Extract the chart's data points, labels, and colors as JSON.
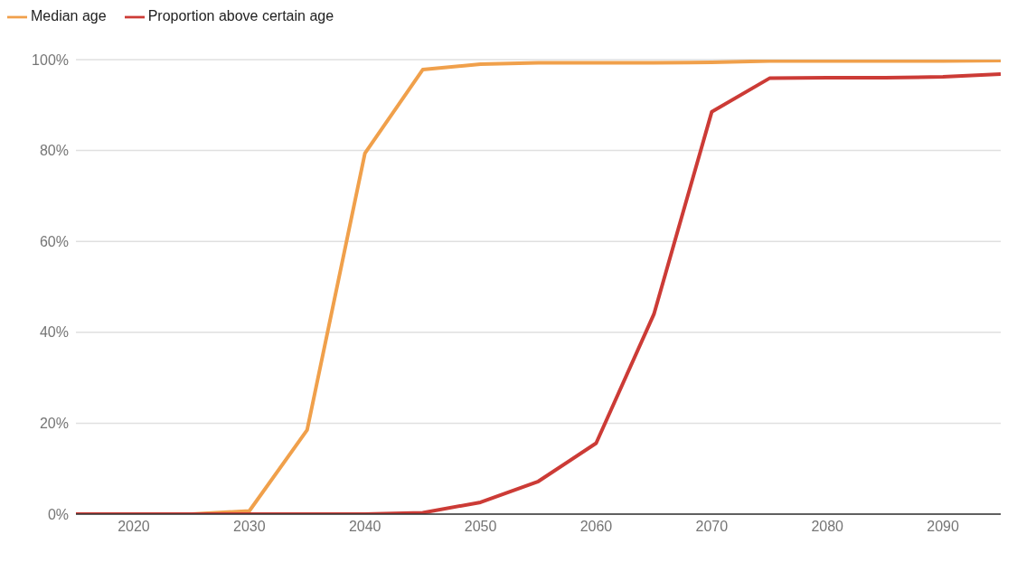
{
  "chart_data": {
    "type": "line",
    "x": [
      2015,
      2020,
      2025,
      2030,
      2035,
      2040,
      2045,
      2050,
      2055,
      2060,
      2065,
      2070,
      2075,
      2080,
      2085,
      2090,
      2095
    ],
    "series": [
      {
        "name": "Median age",
        "color": "#f0a04b",
        "values": [
          0,
          0,
          0,
          0.7,
          18.5,
          79.4,
          97.8,
          99,
          99.3,
          99.3,
          99.3,
          99.4,
          99.7,
          99.7,
          99.7,
          99.7,
          99.8
        ]
      },
      {
        "name": "Proportion above certain age",
        "color": "#cc3b36",
        "values": [
          0,
          0,
          0,
          0,
          0,
          0,
          0.3,
          2.6,
          7.2,
          15.6,
          44,
          88.5,
          95.9,
          96,
          96,
          96.2,
          96.8
        ]
      }
    ],
    "xlim": [
      2015,
      2095
    ],
    "xticks": [
      2020,
      2030,
      2040,
      2050,
      2060,
      2070,
      2080,
      2090
    ],
    "ylim": [
      0,
      100
    ],
    "yticks": [
      {
        "value": 0,
        "label": "0%"
      },
      {
        "value": 20,
        "label": "20%"
      },
      {
        "value": 40,
        "label": "40%"
      },
      {
        "value": 60,
        "label": "60%"
      },
      {
        "value": 80,
        "label": "80%"
      },
      {
        "value": 100,
        "label": "100%"
      }
    ],
    "grid": "y",
    "legend": "top left",
    "marker": "none",
    "line_style": "solid"
  }
}
